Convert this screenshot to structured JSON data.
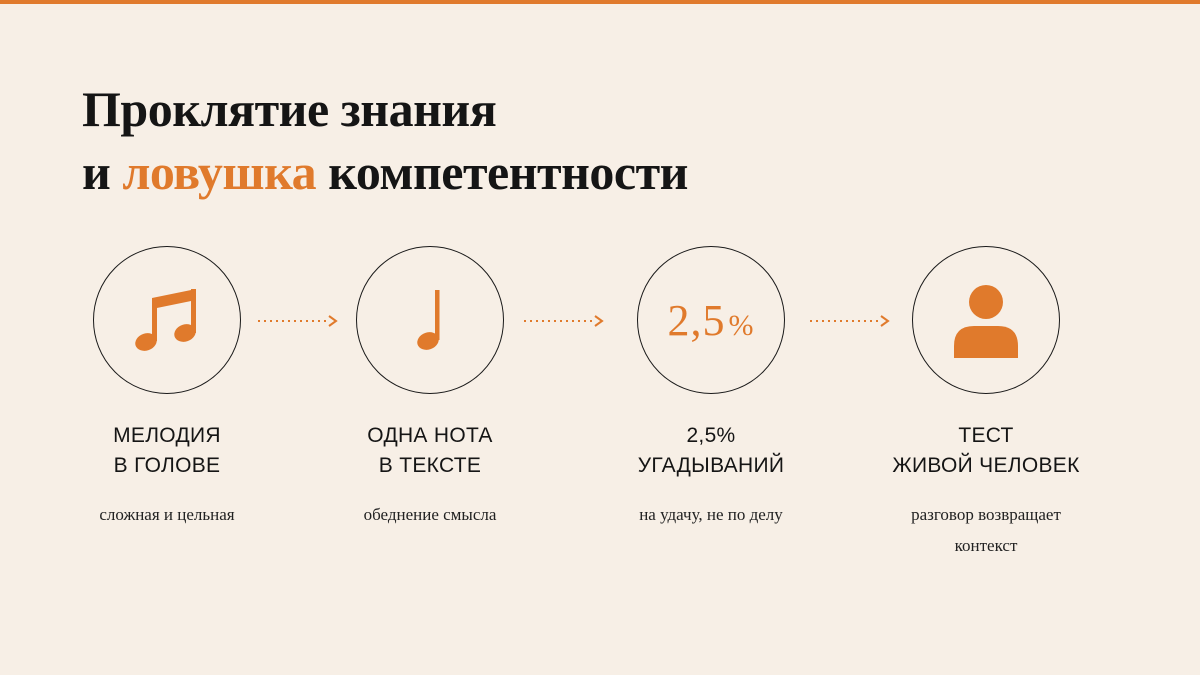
{
  "slide": {
    "title": {
      "line1": "Проклятие знания",
      "line2_prefix": "и",
      "line2_accent": "ловушка",
      "line2_suffix": "компетентности"
    },
    "accent_color": "#e07a2c",
    "steps": [
      {
        "icon": "music-notes-icon",
        "label": [
          "Мелодия",
          "в голове"
        ],
        "description": [
          "сложная и цельная"
        ]
      },
      {
        "icon": "single-note-icon",
        "label": [
          "Одна нота",
          "в тексте"
        ],
        "description": [
          "обеднение смысла"
        ]
      },
      {
        "icon_value": "2,5",
        "icon_unit": "%",
        "label": [
          "2,5%",
          "угадываний"
        ],
        "description": [
          "на удачу, не по делу"
        ]
      },
      {
        "icon": "person-icon",
        "label": [
          "Тест",
          "живой человек"
        ],
        "description": [
          "разговор возвращает",
          "контекст"
        ]
      }
    ]
  }
}
